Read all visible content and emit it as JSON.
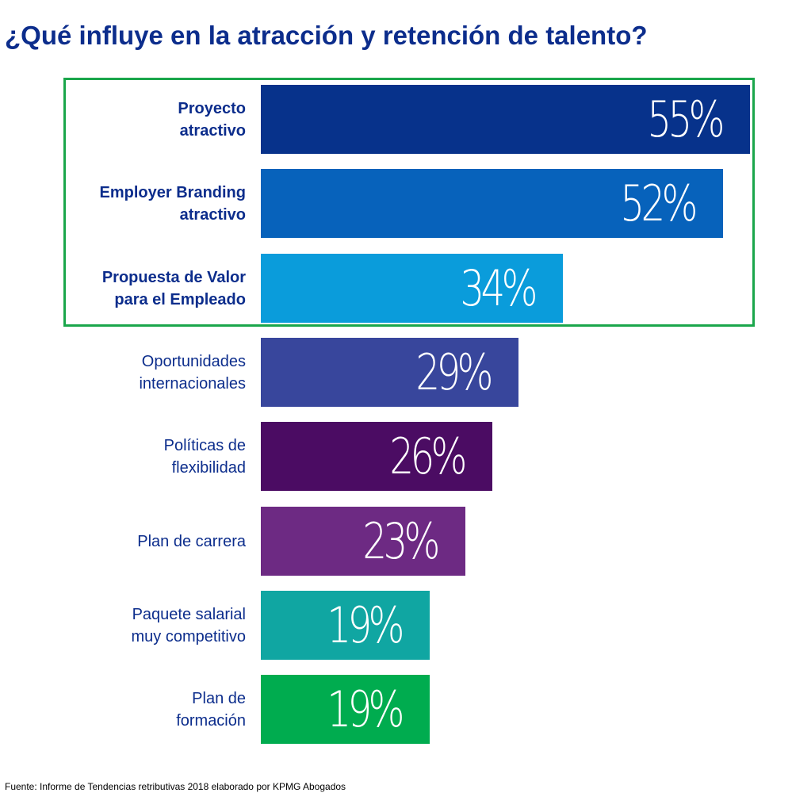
{
  "header": {
    "title": "¿Qué influye en la atracción y retención de talento?"
  },
  "footer": {
    "source": "Fuente: Informe de Tendencias retributivas 2018 elaborado por KPMG Abogados"
  },
  "chart_data": {
    "type": "bar",
    "orientation": "horizontal",
    "title": "¿Qué influye en la atracción y retención de talento?",
    "xlabel": "",
    "ylabel": "",
    "unit": "%",
    "xlim": [
      0,
      55
    ],
    "grid": false,
    "highlighted_categories": [
      "Proyecto atractivo",
      "Employer Branding atractivo",
      "Propuesta de Valor para el Empleado"
    ],
    "categories": [
      "Proyecto\natractivo",
      "Employer Branding\natractivo",
      "Propuesta de Valor\npara el Empleado",
      "Oportunidades\ninternacionales",
      "Políticas de\nflexibilidad",
      "Plan de carrera",
      "Paquete salarial\nmuy competitivo",
      "Plan de\nformación"
    ],
    "values": [
      55,
      52,
      34,
      29,
      26,
      23,
      19,
      19
    ],
    "value_labels": [
      "55%",
      "52%",
      "34%",
      "29%",
      "26%",
      "23%",
      "19%",
      "19%"
    ],
    "bold_labels": [
      true,
      true,
      true,
      false,
      false,
      false,
      false,
      false
    ],
    "colors": [
      "#07328b",
      "#0762bb",
      "#0a9cdb",
      "#38469c",
      "#4b0c63",
      "#6d2a83",
      "#10a6a2",
      "#00ac4f"
    ]
  },
  "colors": {
    "title": "#0c2d8c",
    "label": "#0c2d8c",
    "highlight_border": "#1aa64b",
    "value_text": "#ffffff"
  }
}
